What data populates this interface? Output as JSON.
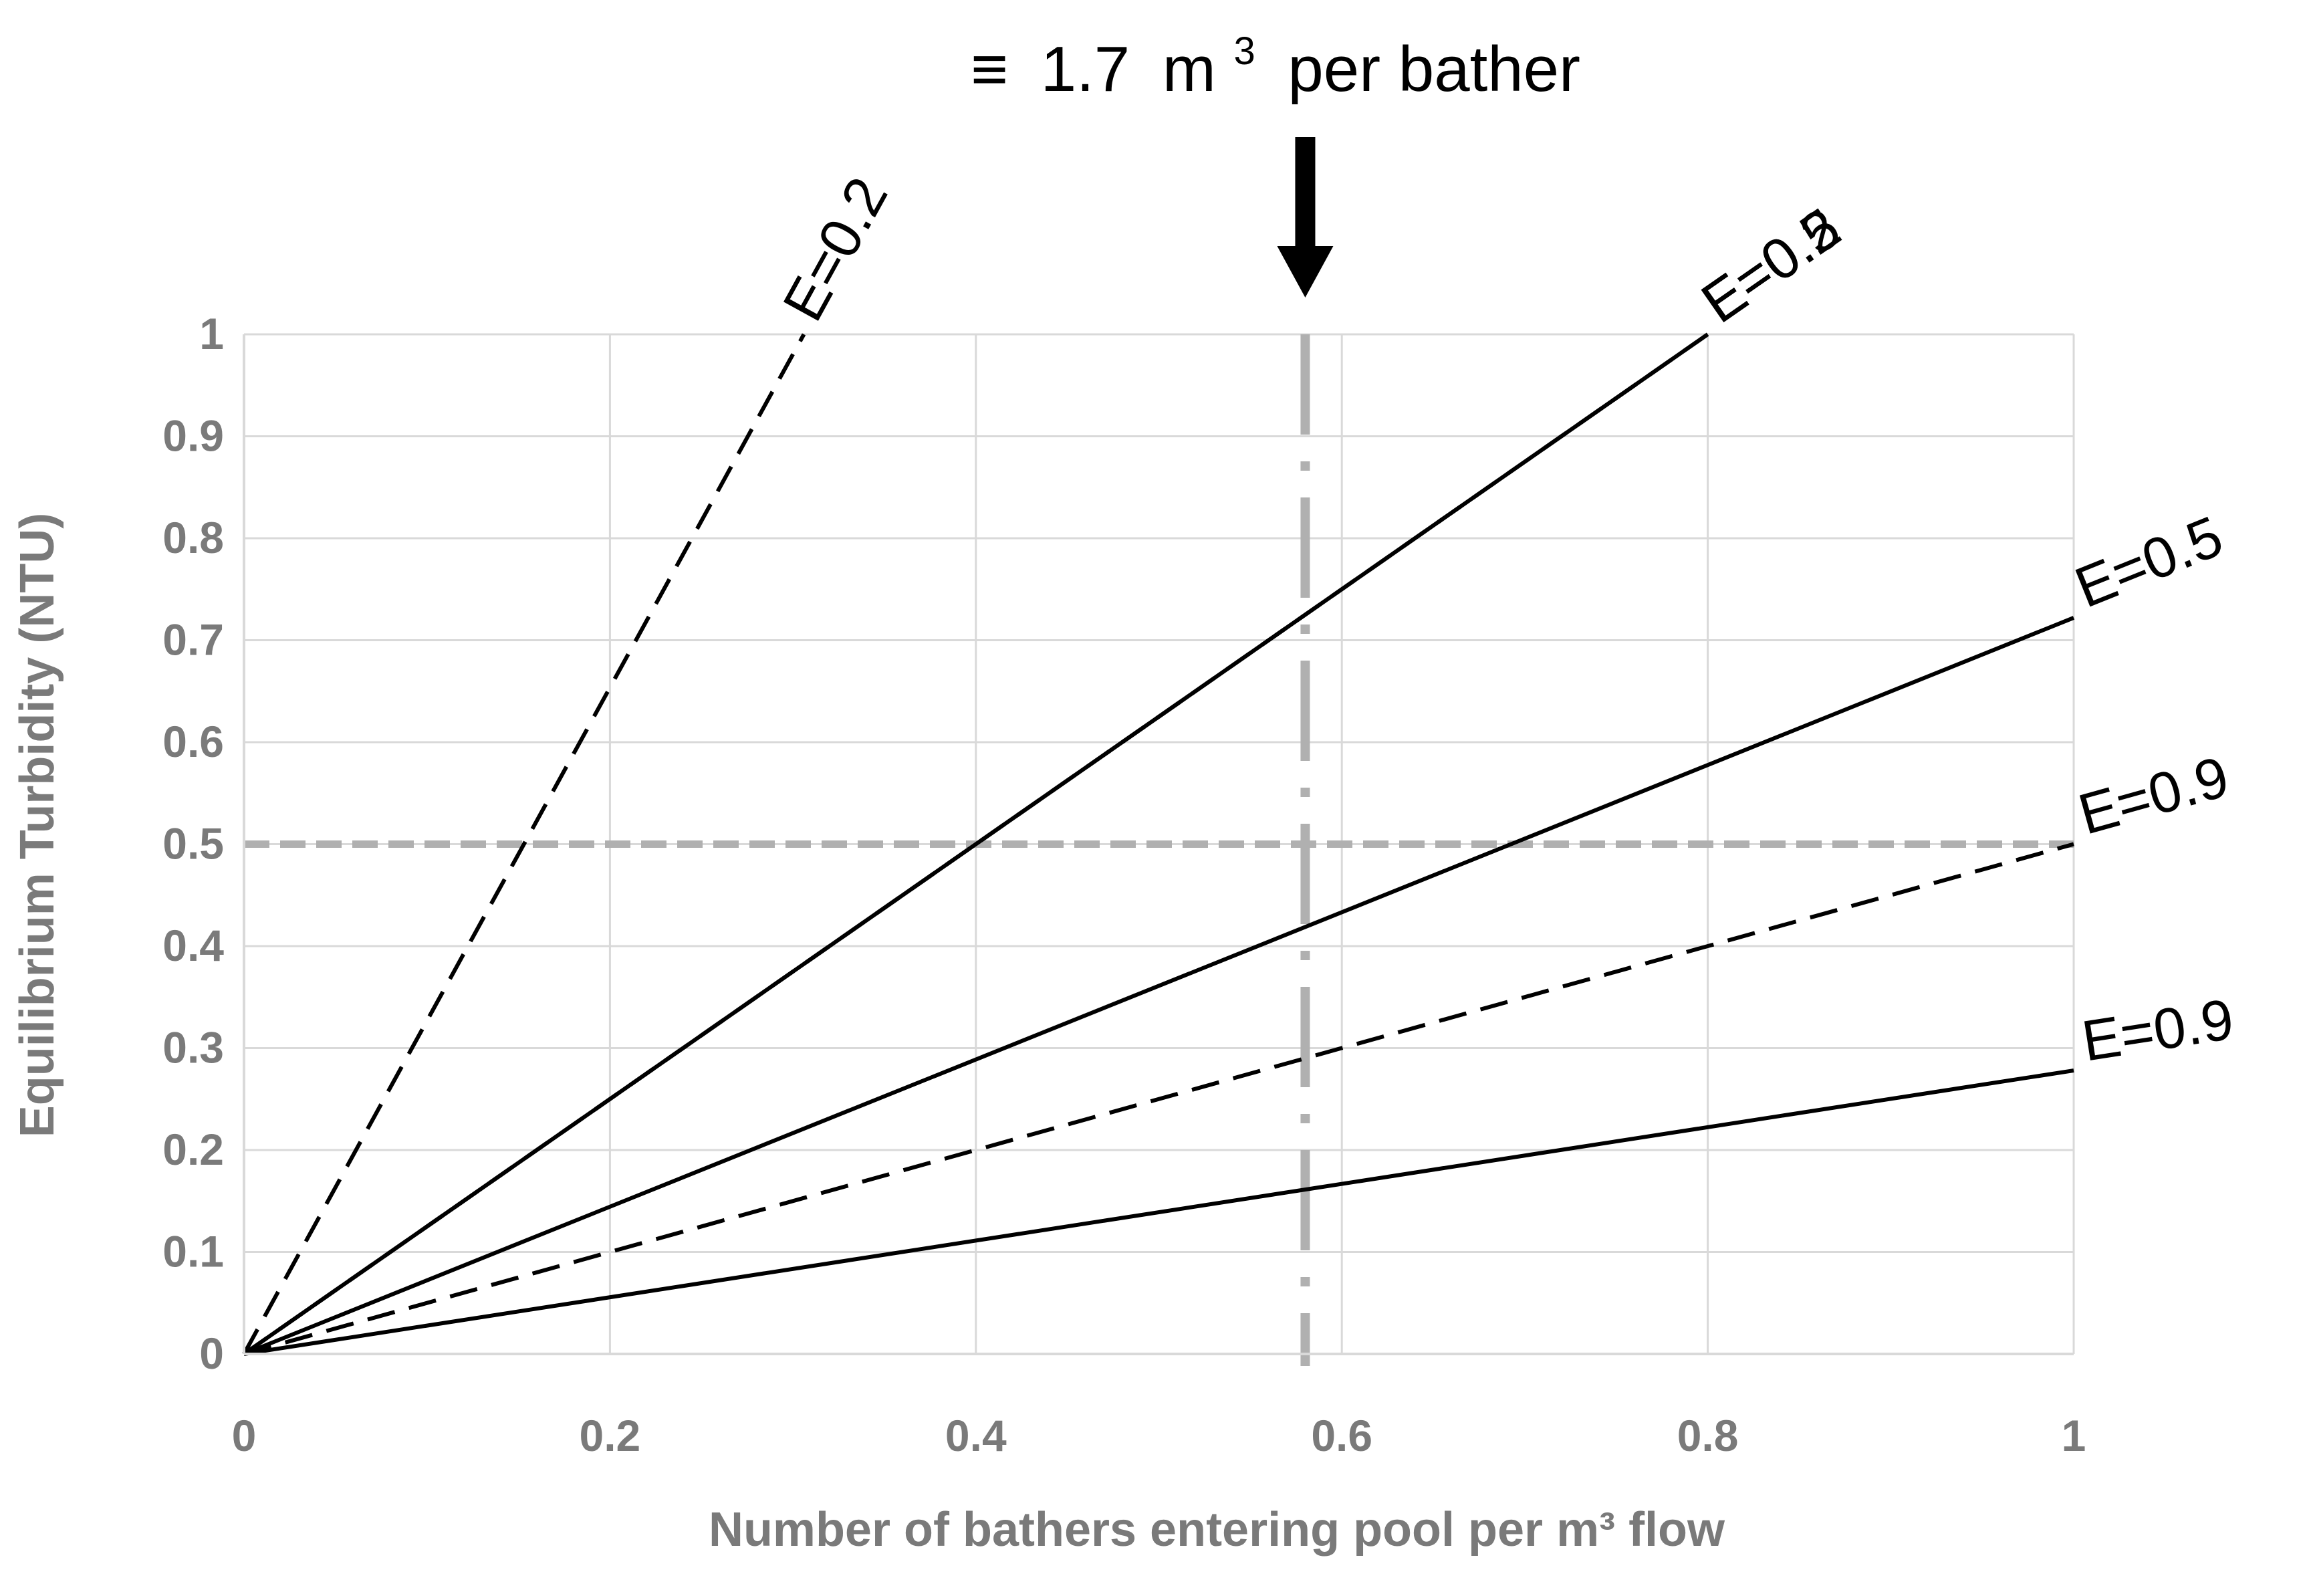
{
  "chart_data": {
    "type": "line",
    "title": "",
    "xlabel": "Number of bathers entering pool  per m³ flow",
    "ylabel": "Equilibrium Turbidity (NTU)",
    "xlim": [
      0,
      1
    ],
    "ylim": [
      0,
      1
    ],
    "x_ticks": [
      "0",
      "0.2",
      "0.4",
      "0.6",
      "0.8",
      "1"
    ],
    "y_ticks": [
      "0",
      "0.1",
      "0.2",
      "0.3",
      "0.4",
      "0.5",
      "0.6",
      "0.7",
      "0.8",
      "0.9",
      "1"
    ],
    "grid": true,
    "colors": {
      "series": "#000000",
      "reference": "#b0b0b0",
      "grid": "#d9d9d9",
      "axis_text": "#7a7a7a"
    },
    "series": [
      {
        "name": "E=0.2",
        "style": "dashed",
        "x": [
          0,
          0.306
        ],
        "y": [
          0,
          1.0
        ]
      },
      {
        "name": "E=0.5",
        "style": "dashed",
        "x": [
          0,
          0.8
        ],
        "y": [
          0,
          1.0
        ]
      },
      {
        "name": "E=0.2",
        "style": "solid",
        "x": [
          0,
          0.8
        ],
        "y": [
          0,
          1.0
        ]
      },
      {
        "name": "E=0.5",
        "style": "solid",
        "x": [
          0,
          1.0
        ],
        "y": [
          0,
          0.722
        ]
      },
      {
        "name": "E=0.9",
        "style": "dashed",
        "x": [
          0,
          1.0
        ],
        "y": [
          0,
          0.5
        ]
      },
      {
        "name": "E=0.9",
        "style": "solid",
        "x": [
          0,
          1.0
        ],
        "y": [
          0,
          0.278
        ]
      }
    ],
    "reference_lines": [
      {
        "orientation": "horizontal",
        "value": 0.5,
        "style": "dashed"
      },
      {
        "orientation": "vertical",
        "value": 0.58,
        "style": "dash-dot"
      }
    ],
    "annotation": {
      "symbol": "≡",
      "value": "1.7",
      "unit": "m",
      "unit_sup": "3",
      "suffix": "per bather",
      "x": 0.58
    }
  }
}
